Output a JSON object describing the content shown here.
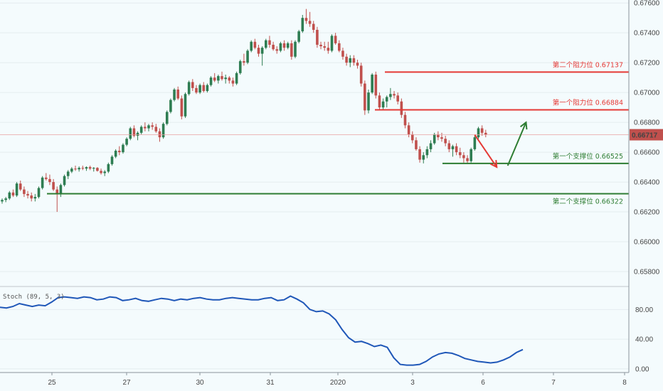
{
  "chart_data": [
    {
      "type": "candlestick",
      "y_axis_ticks": [
        "0.67600",
        "0.67400",
        "0.67200",
        "0.67000",
        "0.66800",
        "0.66600",
        "0.66400",
        "0.66200",
        "0.66000",
        "0.65800"
      ],
      "ylim": [
        0.657,
        0.6762
      ],
      "x_axis_ticks": [
        "25",
        "27",
        "30",
        "31",
        "2020",
        "3",
        "6",
        "7",
        "8"
      ],
      "current_price": "0.66717",
      "levels": [
        {
          "label": "第二个阻力位 0.67137",
          "value": 0.67137,
          "color": "#e53935"
        },
        {
          "label": "第一个阻力位 0.66884",
          "value": 0.66884,
          "color": "#e53935"
        },
        {
          "label": "第一个支撑位 0.66525",
          "value": 0.66525,
          "color": "#2e7d32"
        },
        {
          "label": "第二个支撑位 0.66322",
          "value": 0.66322,
          "color": "#2e7d32"
        }
      ],
      "candles": [
        [
          0.6627,
          0.6629,
          0.66255,
          0.6628
        ],
        [
          0.6628,
          0.663,
          0.66265,
          0.6629
        ],
        [
          0.6629,
          0.6634,
          0.6628,
          0.6633
        ],
        [
          0.6633,
          0.6635,
          0.663,
          0.6631
        ],
        [
          0.6631,
          0.664,
          0.663,
          0.6639
        ],
        [
          0.6639,
          0.6641,
          0.6634,
          0.6635
        ],
        [
          0.6635,
          0.6637,
          0.663,
          0.6632
        ],
        [
          0.6632,
          0.6634,
          0.6629,
          0.6631
        ],
        [
          0.6631,
          0.6633,
          0.6627,
          0.6629
        ],
        [
          0.6629,
          0.6632,
          0.6627,
          0.663
        ],
        [
          0.663,
          0.6637,
          0.6629,
          0.6636
        ],
        [
          0.6636,
          0.6644,
          0.6635,
          0.6643
        ],
        [
          0.6643,
          0.6646,
          0.6641,
          0.6642
        ],
        [
          0.6642,
          0.6645,
          0.6638,
          0.664
        ],
        [
          0.664,
          0.6642,
          0.6634,
          0.6635
        ],
        [
          0.6635,
          0.6637,
          0.662,
          0.6632
        ],
        [
          0.6632,
          0.6639,
          0.663,
          0.6638
        ],
        [
          0.6638,
          0.6645,
          0.6637,
          0.6644
        ],
        [
          0.6644,
          0.6648,
          0.6642,
          0.6647
        ],
        [
          0.6647,
          0.665,
          0.6646,
          0.6649
        ],
        [
          0.6649,
          0.6651,
          0.66475,
          0.66485
        ],
        [
          0.66485,
          0.66505,
          0.6647,
          0.66495
        ],
        [
          0.66495,
          0.6651,
          0.6648,
          0.6649
        ],
        [
          0.6649,
          0.66505,
          0.66475,
          0.665
        ],
        [
          0.665,
          0.6651,
          0.6648,
          0.6649
        ],
        [
          0.6649,
          0.665,
          0.6647,
          0.66495
        ],
        [
          0.66495,
          0.665,
          0.6647,
          0.66475
        ],
        [
          0.66475,
          0.6649,
          0.6645,
          0.6646
        ],
        [
          0.6646,
          0.6648,
          0.6644,
          0.6647
        ],
        [
          0.6647,
          0.6653,
          0.6646,
          0.6652
        ],
        [
          0.6652,
          0.6658,
          0.6651,
          0.6657
        ],
        [
          0.6657,
          0.6662,
          0.6656,
          0.6661
        ],
        [
          0.6661,
          0.6664,
          0.6658,
          0.666
        ],
        [
          0.666,
          0.6666,
          0.6659,
          0.6665
        ],
        [
          0.6665,
          0.667,
          0.6664,
          0.6669
        ],
        [
          0.6669,
          0.6677,
          0.6668,
          0.6676
        ],
        [
          0.6676,
          0.6678,
          0.667,
          0.6671
        ],
        [
          0.6671,
          0.6674,
          0.6668,
          0.6673
        ],
        [
          0.6673,
          0.6678,
          0.6672,
          0.6677
        ],
        [
          0.6677,
          0.668,
          0.6674,
          0.6676
        ],
        [
          0.6676,
          0.6679,
          0.6674,
          0.6678
        ],
        [
          0.6678,
          0.668,
          0.6675,
          0.6677
        ],
        [
          0.6677,
          0.6679,
          0.6673,
          0.6674
        ],
        [
          0.6674,
          0.6676,
          0.6667,
          0.667
        ],
        [
          0.667,
          0.668,
          0.6669,
          0.6679
        ],
        [
          0.6679,
          0.6688,
          0.6678,
          0.6687
        ],
        [
          0.6687,
          0.6696,
          0.6686,
          0.6695
        ],
        [
          0.6695,
          0.6703,
          0.6694,
          0.6702
        ],
        [
          0.6702,
          0.6704,
          0.6695,
          0.6696
        ],
        [
          0.6696,
          0.6698,
          0.6682,
          0.6684
        ],
        [
          0.6684,
          0.67,
          0.6683,
          0.6699
        ],
        [
          0.6699,
          0.6708,
          0.6698,
          0.6707
        ],
        [
          0.6707,
          0.6709,
          0.6701,
          0.6703
        ],
        [
          0.6703,
          0.6705,
          0.6699,
          0.67
        ],
        [
          0.67,
          0.6706,
          0.6699,
          0.6705
        ],
        [
          0.6705,
          0.6707,
          0.67,
          0.6701
        ],
        [
          0.6701,
          0.6706,
          0.67,
          0.6705
        ],
        [
          0.6705,
          0.6711,
          0.6704,
          0.671
        ],
        [
          0.671,
          0.6713,
          0.6707,
          0.6708
        ],
        [
          0.6708,
          0.6712,
          0.6706,
          0.6711
        ],
        [
          0.6711,
          0.6714,
          0.6708,
          0.6709
        ],
        [
          0.6709,
          0.6712,
          0.6706,
          0.671
        ],
        [
          0.671,
          0.6711,
          0.6706,
          0.6708
        ],
        [
          0.6708,
          0.671,
          0.6704,
          0.6706
        ],
        [
          0.6706,
          0.6714,
          0.6705,
          0.6713
        ],
        [
          0.6713,
          0.6722,
          0.6712,
          0.6721
        ],
        [
          0.6721,
          0.6726,
          0.6718,
          0.672
        ],
        [
          0.672,
          0.6729,
          0.6719,
          0.6728
        ],
        [
          0.6728,
          0.6735,
          0.6727,
          0.6734
        ],
        [
          0.6734,
          0.6736,
          0.6729,
          0.673
        ],
        [
          0.673,
          0.6732,
          0.6724,
          0.6726
        ],
        [
          0.6726,
          0.6731,
          0.6718,
          0.673
        ],
        [
          0.673,
          0.6736,
          0.6729,
          0.6735
        ],
        [
          0.6735,
          0.6738,
          0.673,
          0.6732
        ],
        [
          0.6732,
          0.6734,
          0.6728,
          0.6729
        ],
        [
          0.6729,
          0.6731,
          0.6726,
          0.6728
        ],
        [
          0.6728,
          0.6734,
          0.6727,
          0.6733
        ],
        [
          0.6733,
          0.6735,
          0.6728,
          0.673
        ],
        [
          0.673,
          0.6734,
          0.6729,
          0.6733
        ],
        [
          0.6733,
          0.6735,
          0.6722,
          0.6724
        ],
        [
          0.6724,
          0.6735,
          0.6723,
          0.6734
        ],
        [
          0.6734,
          0.6742,
          0.6733,
          0.6741
        ],
        [
          0.6741,
          0.6752,
          0.674,
          0.675
        ],
        [
          0.675,
          0.6756,
          0.6746,
          0.6748
        ],
        [
          0.6748,
          0.6754,
          0.6744,
          0.6746
        ],
        [
          0.6746,
          0.6748,
          0.674,
          0.6742
        ],
        [
          0.6742,
          0.6744,
          0.673,
          0.6732
        ],
        [
          0.6732,
          0.6734,
          0.6729,
          0.6731
        ],
        [
          0.6731,
          0.6734,
          0.6728,
          0.673
        ],
        [
          0.673,
          0.6734,
          0.6726,
          0.6728
        ],
        [
          0.6728,
          0.6739,
          0.6727,
          0.6738
        ],
        [
          0.6738,
          0.674,
          0.6732,
          0.6733
        ],
        [
          0.6733,
          0.6735,
          0.6727,
          0.6728
        ],
        [
          0.6728,
          0.673,
          0.6722,
          0.6724
        ],
        [
          0.6724,
          0.6726,
          0.6718,
          0.672
        ],
        [
          0.672,
          0.6725,
          0.6717,
          0.6723
        ],
        [
          0.6723,
          0.6725,
          0.6718,
          0.672
        ],
        [
          0.672,
          0.6722,
          0.6716,
          0.6718
        ],
        [
          0.6718,
          0.672,
          0.6704,
          0.6706
        ],
        [
          0.6706,
          0.6708,
          0.6685,
          0.6688
        ],
        [
          0.6688,
          0.6702,
          0.6686,
          0.67
        ],
        [
          0.67,
          0.6713,
          0.6699,
          0.6712
        ],
        [
          0.6712,
          0.6714,
          0.6696,
          0.6698
        ],
        [
          0.6698,
          0.67,
          0.6688,
          0.669
        ],
        [
          0.669,
          0.6696,
          0.6688,
          0.6694
        ],
        [
          0.6694,
          0.6698,
          0.669,
          0.6697
        ],
        [
          0.6697,
          0.6703,
          0.6695,
          0.6699
        ],
        [
          0.6699,
          0.6701,
          0.6696,
          0.6698
        ],
        [
          0.6698,
          0.67,
          0.6692,
          0.6694
        ],
        [
          0.6694,
          0.6696,
          0.6683,
          0.6685
        ],
        [
          0.6685,
          0.6687,
          0.6676,
          0.6678
        ],
        [
          0.6678,
          0.668,
          0.667,
          0.6672
        ],
        [
          0.6672,
          0.6674,
          0.6666,
          0.6668
        ],
        [
          0.6668,
          0.667,
          0.6661,
          0.6662
        ],
        [
          0.6662,
          0.6664,
          0.6653,
          0.6655
        ],
        [
          0.6655,
          0.666,
          0.66525,
          0.6658
        ],
        [
          0.6658,
          0.6664,
          0.6656,
          0.6662
        ],
        [
          0.6662,
          0.6668,
          0.666,
          0.6666
        ],
        [
          0.6666,
          0.6673,
          0.6665,
          0.6672
        ],
        [
          0.6672,
          0.6674,
          0.6668,
          0.667
        ],
        [
          0.667,
          0.6673,
          0.6667,
          0.6669
        ],
        [
          0.6669,
          0.6671,
          0.6664,
          0.6666
        ],
        [
          0.6666,
          0.6668,
          0.666,
          0.6662
        ],
        [
          0.6662,
          0.6665,
          0.6657,
          0.6664
        ],
        [
          0.6664,
          0.6666,
          0.6658,
          0.666
        ],
        [
          0.666,
          0.6663,
          0.6656,
          0.6658
        ],
        [
          0.6658,
          0.666,
          0.6653,
          0.6656
        ],
        [
          0.6656,
          0.6658,
          0.66525,
          0.6654
        ],
        [
          0.6654,
          0.6663,
          0.6653,
          0.6662
        ],
        [
          0.6662,
          0.6671,
          0.6661,
          0.667
        ],
        [
          0.667,
          0.6677,
          0.6669,
          0.6676
        ],
        [
          0.6676,
          0.6678,
          0.6671,
          0.6673
        ],
        [
          0.6673,
          0.6675,
          0.667,
          0.66717
        ]
      ],
      "arrows": [
        {
          "color": "#e53935",
          "from": [
            129,
            0.66717
          ],
          "to": [
            135,
            0.665
          ]
        },
        {
          "color": "#2e7d32",
          "from": [
            138,
            0.6651
          ],
          "to": [
            143,
            0.668
          ]
        }
      ]
    },
    {
      "type": "line",
      "indicator_label": "Stoch (89, 5, 3)",
      "y_axis_ticks": [
        "80.00",
        "40.00",
        "0.00"
      ],
      "ylim": [
        -4,
        110
      ],
      "values": [
        83,
        82,
        84,
        88,
        86,
        84,
        86,
        85,
        90,
        96,
        97,
        96,
        95,
        97,
        96,
        93,
        94,
        97,
        96,
        92,
        93,
        95,
        92,
        91,
        93,
        95,
        94,
        92,
        94,
        93,
        95,
        96,
        94,
        93,
        93,
        95,
        96,
        95,
        94,
        93,
        93,
        95,
        96,
        92,
        93,
        98,
        94,
        89,
        80,
        77,
        78,
        74,
        66,
        53,
        42,
        36,
        37,
        34,
        30,
        32,
        29,
        15,
        6,
        5,
        5,
        6,
        10,
        16,
        20,
        22,
        21,
        18,
        14,
        12,
        10,
        9,
        8,
        9,
        12,
        16,
        22,
        26
      ]
    }
  ]
}
